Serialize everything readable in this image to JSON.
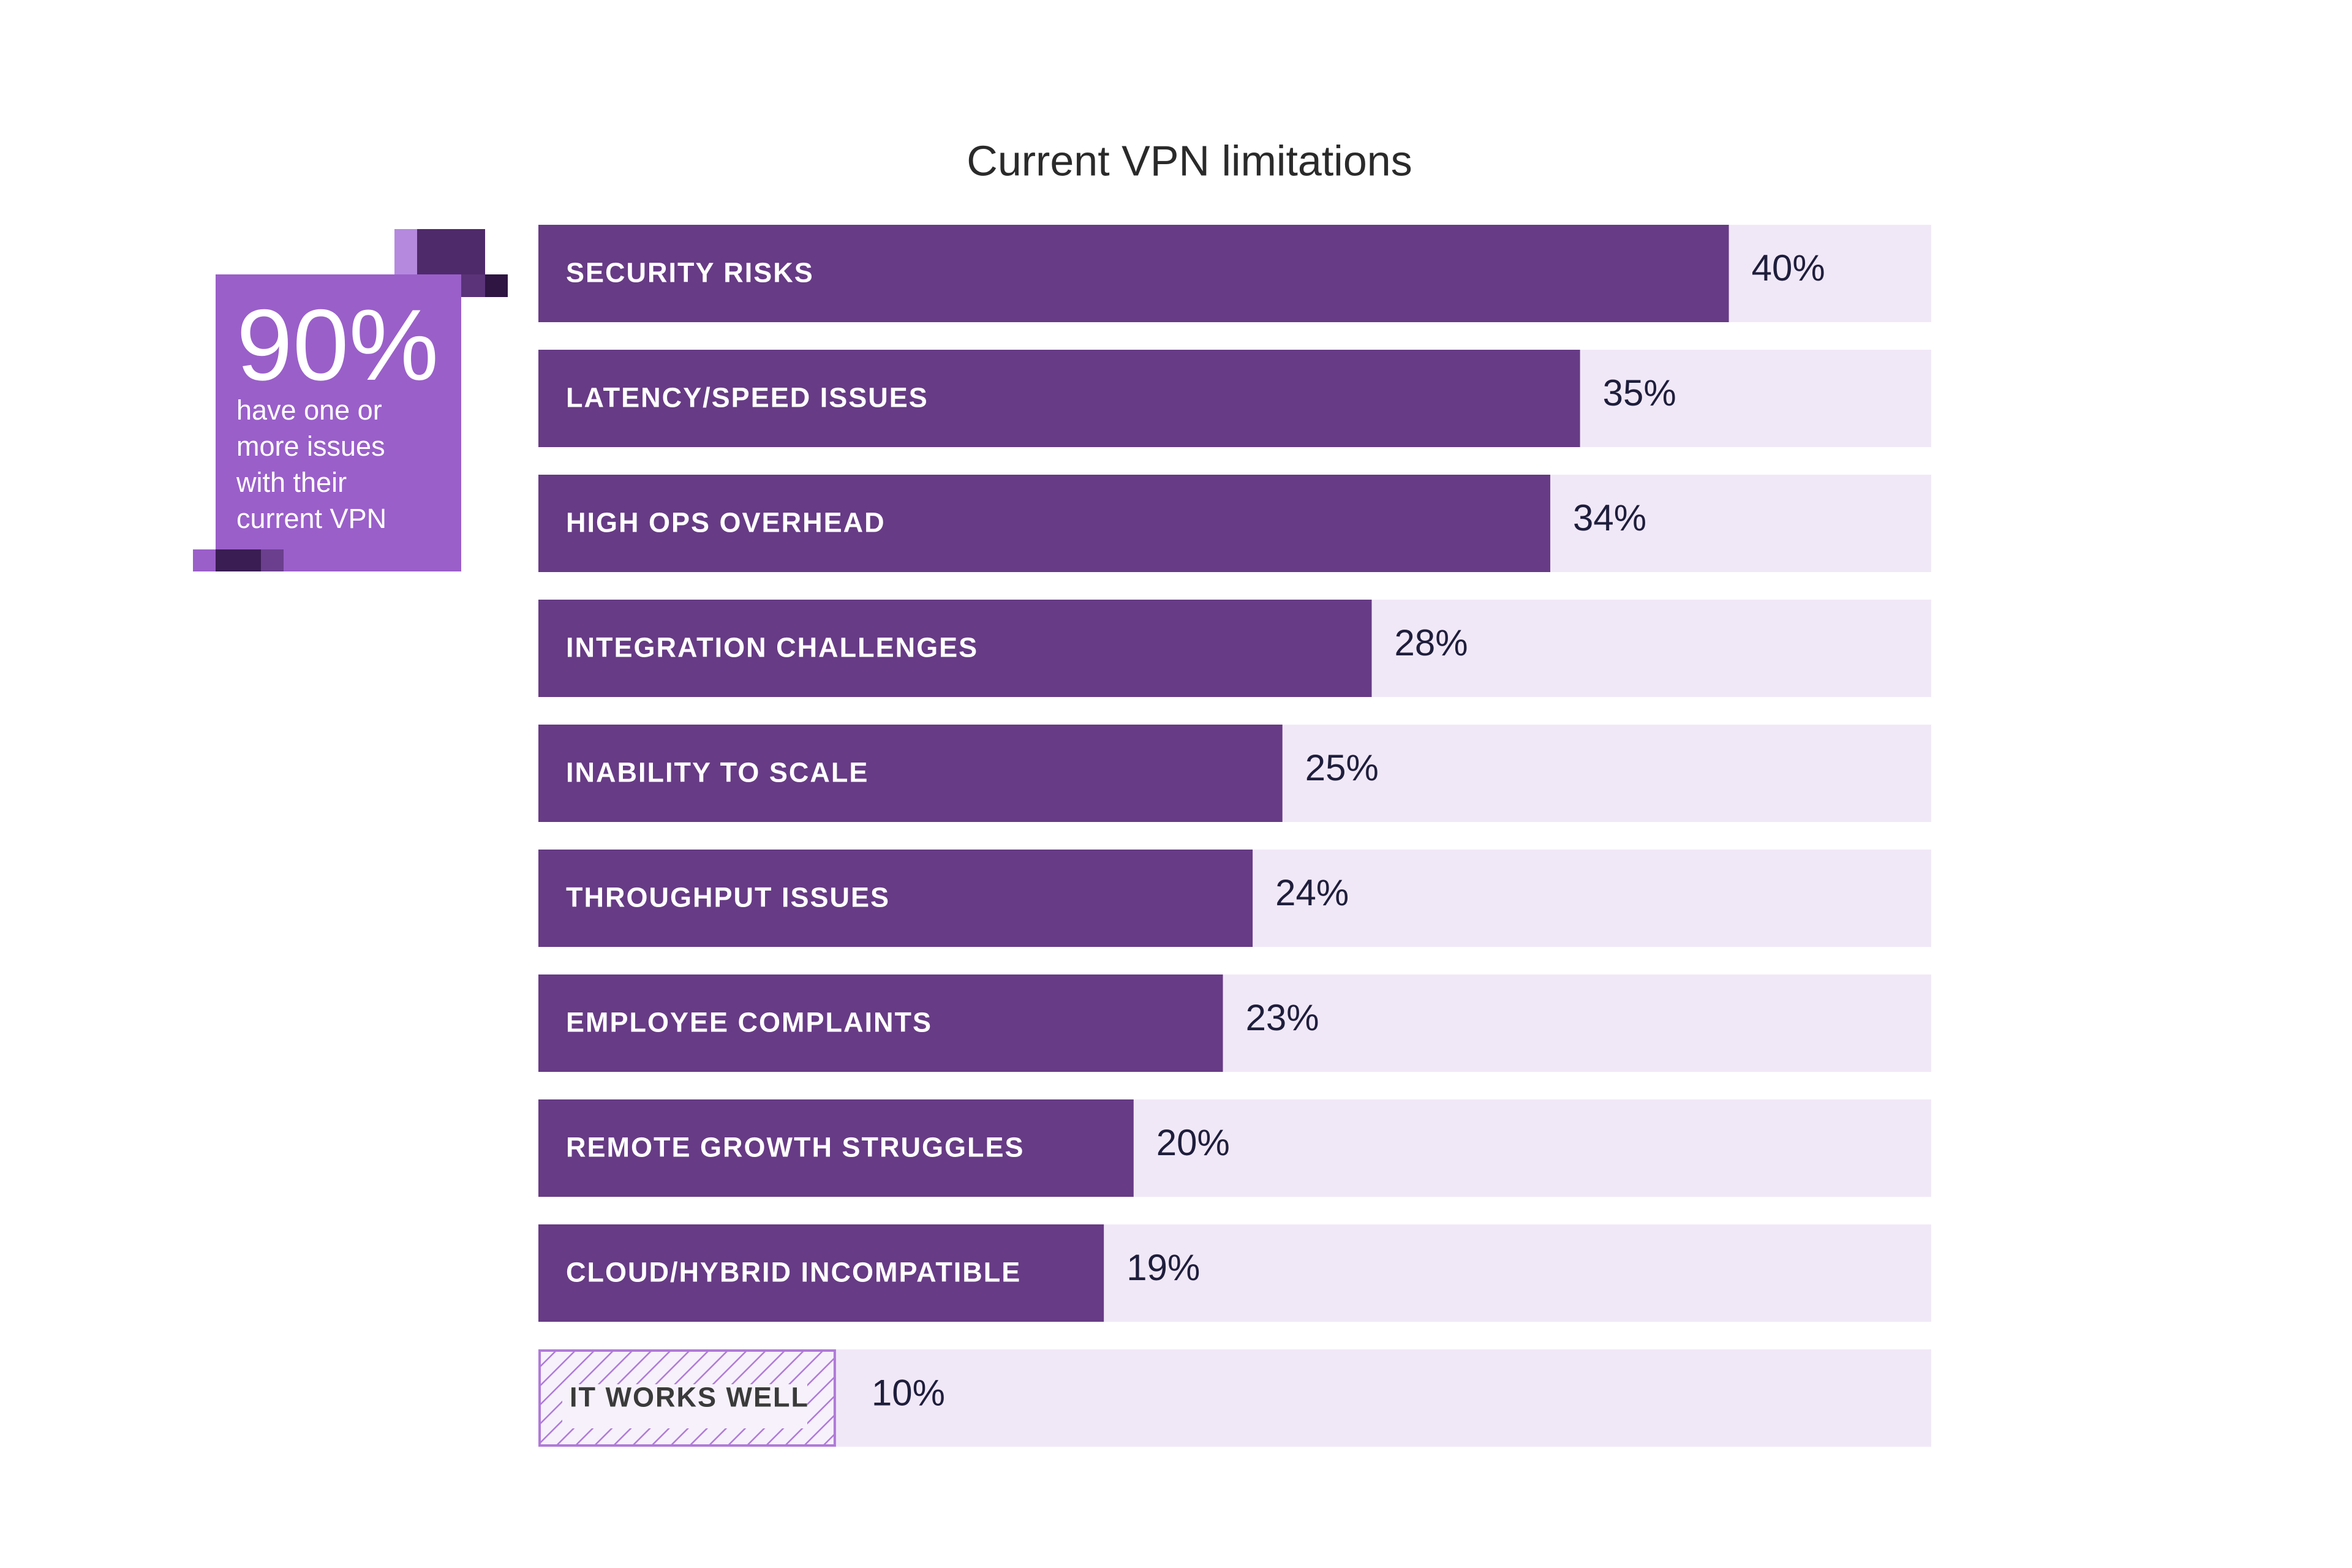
{
  "chart_data": {
    "type": "hbar",
    "title": "Current VPN limitations",
    "categories": [
      "SECURITY RISKS",
      "LATENCY/SPEED ISSUES",
      "HIGH OPS OVERHEAD",
      "INTEGRATION CHALLENGES",
      "INABILITY TO SCALE",
      "THROUGHPUT ISSUES",
      "EMPLOYEE COMPLAINTS",
      "REMOTE GROWTH STRUGGLES",
      "CLOUD/HYBRID INCOMPATIBLE",
      "IT WORKS WELL"
    ],
    "values": [
      40,
      35,
      34,
      28,
      25,
      24,
      23,
      20,
      19,
      10
    ],
    "value_labels": [
      "40%",
      "35%",
      "34%",
      "28%",
      "25%",
      "24%",
      "23%",
      "20%",
      "19%",
      "10%"
    ],
    "hatched": [
      false,
      false,
      false,
      false,
      false,
      false,
      false,
      false,
      false,
      true
    ],
    "color": "#673b85",
    "track_color": "#f1e8f7",
    "hatch_color": "#b07ad8",
    "xlim": [
      0,
      46.8
    ],
    "annotation": {
      "headline": "90%",
      "text": "have one or more issues with their current VPN"
    }
  }
}
